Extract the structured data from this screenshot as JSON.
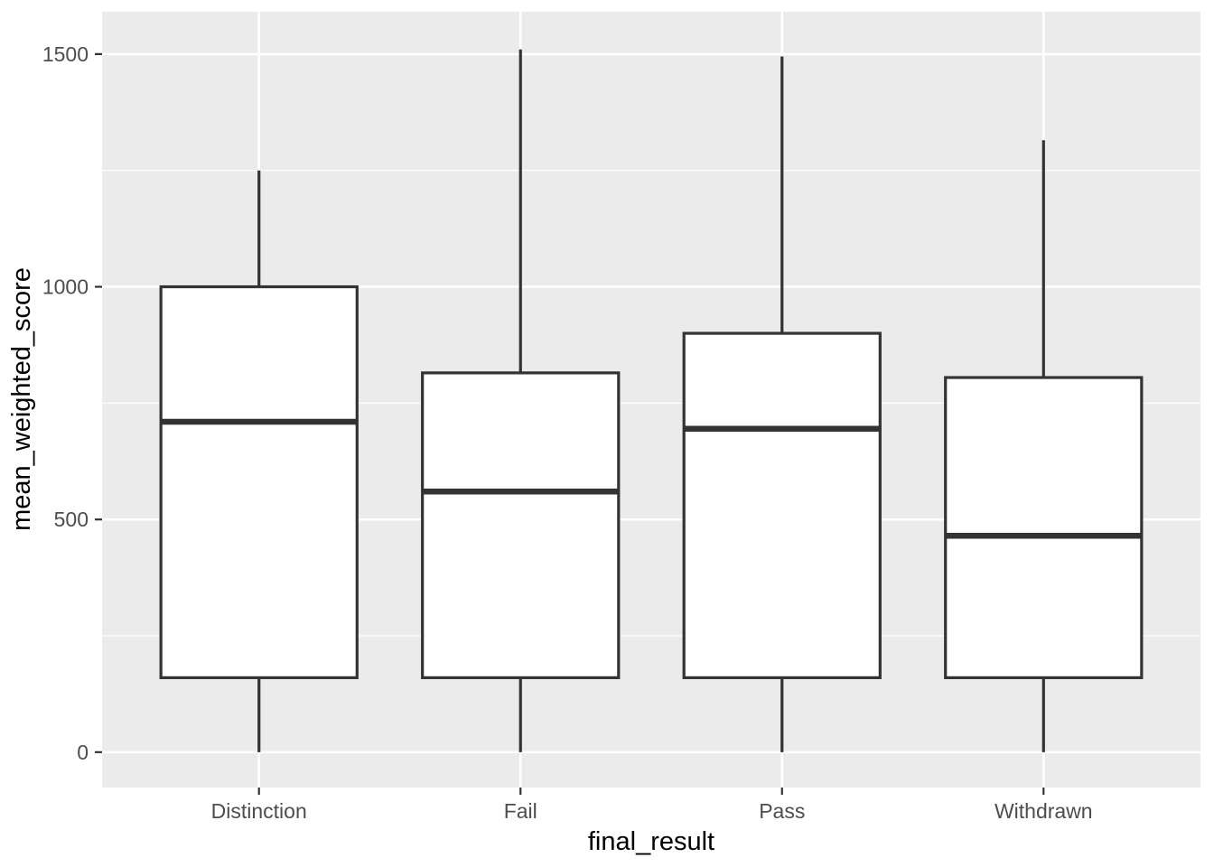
{
  "chart_data": {
    "type": "boxplot",
    "title": "",
    "xlabel": "final_result",
    "ylabel": "mean_weighted_score",
    "categories": [
      "Distinction",
      "Fail",
      "Pass",
      "Withdrawn"
    ],
    "series": [
      {
        "name": "Distinction",
        "whisker_low": 0,
        "q1": 160,
        "median": 710,
        "q3": 1000,
        "whisker_high": 1250
      },
      {
        "name": "Fail",
        "whisker_low": 0,
        "q1": 160,
        "median": 560,
        "q3": 815,
        "whisker_high": 1510
      },
      {
        "name": "Pass",
        "whisker_low": 0,
        "q1": 160,
        "median": 695,
        "q3": 900,
        "whisker_high": 1495
      },
      {
        "name": "Withdrawn",
        "whisker_low": 0,
        "q1": 160,
        "median": 465,
        "q3": 805,
        "whisker_high": 1315
      }
    ],
    "y_ticks": [
      0,
      500,
      1000,
      1500
    ],
    "y_minor_gridlines": [
      250,
      750,
      1250
    ],
    "ylim": [
      -76,
      1591
    ],
    "grid": true,
    "legend_position": "none",
    "colors": {
      "panel_bg": "#EBEBEB",
      "gridline": "#FFFFFF",
      "box_border": "#333333",
      "box_fill": "#FFFFFF",
      "axis_tick": "#333333",
      "axis_text": "#4D4D4D",
      "axis_title": "#000000"
    }
  }
}
